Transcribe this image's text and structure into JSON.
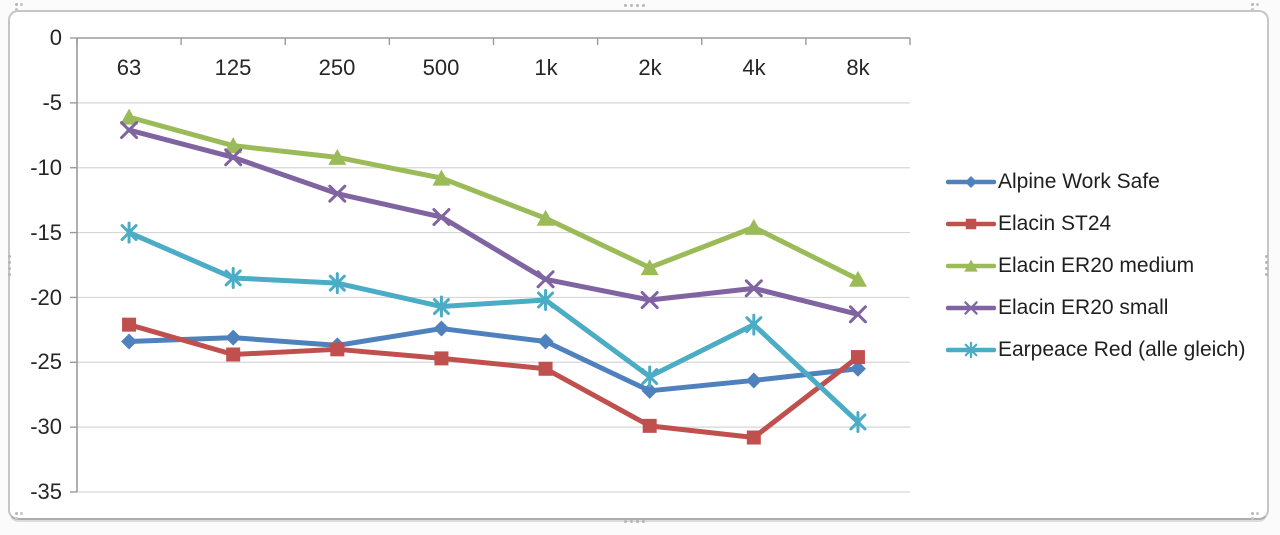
{
  "chart_data": {
    "type": "line",
    "title": "",
    "xlabel": "",
    "ylabel": "",
    "categories": [
      "63",
      "125",
      "250",
      "500",
      "1k",
      "2k",
      "4k",
      "8k"
    ],
    "y_tick_labels": [
      "0",
      "-5",
      "-10",
      "-15",
      "-20",
      "-25",
      "-30",
      "-35"
    ],
    "ylim": [
      -35,
      0
    ],
    "grid": true,
    "legend_position": "right",
    "series": [
      {
        "name": "Alpine Work Safe",
        "marker": "diamond",
        "color": "#4F81BD",
        "values": [
          -23.4,
          -23.1,
          -23.7,
          -22.4,
          -23.4,
          -27.2,
          -26.4,
          -25.5
        ]
      },
      {
        "name": "Elacin ST24",
        "marker": "square",
        "color": "#C0504D",
        "values": [
          -22.1,
          -24.4,
          -24.0,
          -24.7,
          -25.5,
          -29.9,
          -30.8,
          -24.6
        ]
      },
      {
        "name": "Elacin ER20 medium",
        "marker": "triangle",
        "color": "#9BBB59",
        "values": [
          -6.1,
          -8.3,
          -9.2,
          -10.8,
          -13.9,
          -17.7,
          -14.6,
          -18.6
        ]
      },
      {
        "name": "Elacin ER20 small",
        "marker": "x",
        "color": "#8064A2",
        "values": [
          -7.1,
          -9.2,
          -12.0,
          -13.8,
          -18.6,
          -20.2,
          -19.3,
          -21.3
        ]
      },
      {
        "name": "Earpeace Red (alle gleich)",
        "marker": "asterisk",
        "color": "#4BACC6",
        "values": [
          -15.0,
          -18.5,
          -18.9,
          -20.7,
          -20.2,
          -26.1,
          -22.1,
          -29.6
        ]
      }
    ],
    "colors": {
      "gridline": "#d6d6d6",
      "axis": "#9b9b9b",
      "text": "#262626"
    }
  }
}
